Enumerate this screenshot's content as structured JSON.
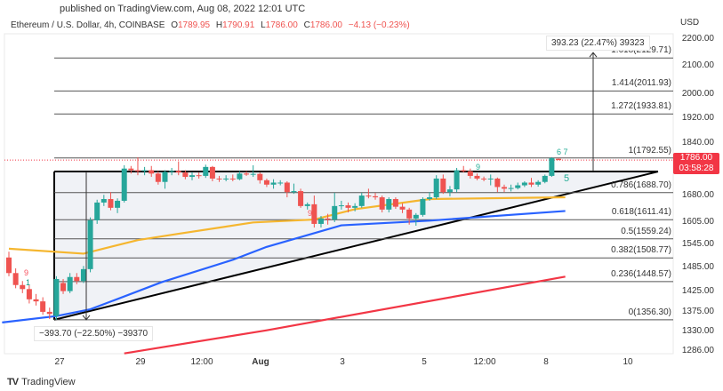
{
  "header": {
    "published": "published on TradingView.com, Aug 08, 2022 12:01 UTC",
    "symbol": "Ethereum / U.S. Dollar, 4h, COINBASE",
    "open_label": "O",
    "open": "1789.95",
    "high_label": "H",
    "high": "1790.91",
    "low_label": "L",
    "low": "1786.00",
    "close_label": "C",
    "close": "1786.00",
    "change": "−4.13 (−0.23%)"
  },
  "price_axis": {
    "currency": "USD",
    "ticks": [
      "2200.00",
      "2100.00",
      "2000.00",
      "1920.00",
      "1840.00",
      "1680.00",
      "1605.00",
      "1545.00",
      "1485.00",
      "1425.00",
      "1375.00",
      "1330.00",
      "1286.00"
    ],
    "current_price": "1786.00",
    "countdown": "03:58:28"
  },
  "time_axis": {
    "ticks": [
      {
        "label": "27",
        "bold": false
      },
      {
        "label": "29",
        "bold": false
      },
      {
        "label": "12:00",
        "bold": false
      },
      {
        "label": "Aug",
        "bold": true
      },
      {
        "label": "3",
        "bold": false
      },
      {
        "label": "5",
        "bold": false
      },
      {
        "label": "12:00",
        "bold": false
      },
      {
        "label": "8",
        "bold": false
      },
      {
        "label": "10",
        "bold": false
      }
    ]
  },
  "fib_levels": [
    {
      "label": "1.618(2129.71)",
      "price": 2129.71
    },
    {
      "label": "1.414(2011.93)",
      "price": 2011.93
    },
    {
      "label": "1.272(1933.81)",
      "price": 1933.81
    },
    {
      "label": "1(1792.55)",
      "price": 1792.55
    },
    {
      "label": "0.786(1688.70)",
      "price": 1688.7
    },
    {
      "label": "0.618(1611.41)",
      "price": 1611.41
    },
    {
      "label": "0.5(1559.24)",
      "price": 1559.24
    },
    {
      "label": "0.382(1508.77)",
      "price": 1508.77
    },
    {
      "label": "0.236(1448.57)",
      "price": 1448.57
    },
    {
      "label": "0(1356.30)",
      "price": 1356.3
    }
  ],
  "measurements": {
    "down": "−393.70 (−22.50%) −39370",
    "up": "393.23 (22.47%) 39323"
  },
  "td_labels": [
    {
      "text": "9",
      "color": "#f7525f"
    },
    {
      "text": "1",
      "color": "#089981"
    },
    {
      "text": "9",
      "color": "#f7525f"
    },
    {
      "text": "9",
      "color": "#22ab94"
    },
    {
      "text": "6 7",
      "color": "#22ab94"
    },
    {
      "text": "5",
      "color": "#22ab94"
    }
  ],
  "footer": {
    "brand": "TradingView"
  },
  "colors": {
    "up": "#26a69a",
    "down": "#ef5350",
    "ma_fast": "#f5b62f",
    "ma_mid": "#2962ff",
    "ma_slow": "#f23645",
    "pattern": "#000000",
    "price_line": "#f23645"
  },
  "chart_data": {
    "type": "candlestick",
    "interval": "4h",
    "y_scale": "log",
    "ylim": [
      1286,
      2200
    ],
    "candles": [
      [
        1510,
        1525,
        1462,
        1470
      ],
      [
        1470,
        1482,
        1432,
        1440
      ],
      [
        1440,
        1450,
        1420,
        1430
      ],
      [
        1430,
        1440,
        1395,
        1405
      ],
      [
        1405,
        1418,
        1390,
        1400
      ],
      [
        1400,
        1410,
        1368,
        1375
      ],
      [
        1375,
        1385,
        1358,
        1370
      ],
      [
        1365,
        1462,
        1356,
        1455
      ],
      [
        1445,
        1455,
        1418,
        1425
      ],
      [
        1425,
        1470,
        1420,
        1460
      ],
      [
        1460,
        1470,
        1442,
        1450
      ],
      [
        1450,
        1488,
        1445,
        1480
      ],
      [
        1480,
        1618,
        1472,
        1610
      ],
      [
        1610,
        1668,
        1600,
        1660
      ],
      [
        1660,
        1682,
        1650,
        1670
      ],
      [
        1670,
        1690,
        1638,
        1645
      ],
      [
        1645,
        1672,
        1630,
        1665
      ],
      [
        1665,
        1770,
        1660,
        1760
      ],
      [
        1760,
        1768,
        1745,
        1755
      ],
      [
        1755,
        1795,
        1740,
        1752
      ],
      [
        1752,
        1765,
        1740,
        1755
      ],
      [
        1755,
        1768,
        1735,
        1745
      ],
      [
        1745,
        1752,
        1712,
        1720
      ],
      [
        1720,
        1755,
        1700,
        1750
      ],
      [
        1750,
        1762,
        1740,
        1753
      ],
      [
        1753,
        1782,
        1740,
        1748
      ],
      [
        1748,
        1755,
        1728,
        1735
      ],
      [
        1735,
        1750,
        1725,
        1740
      ],
      [
        1740,
        1748,
        1730,
        1738
      ],
      [
        1738,
        1772,
        1732,
        1765
      ],
      [
        1765,
        1768,
        1722,
        1730
      ],
      [
        1730,
        1738,
        1720,
        1728
      ],
      [
        1728,
        1740,
        1722,
        1730
      ],
      [
        1730,
        1742,
        1722,
        1728
      ],
      [
        1728,
        1752,
        1725,
        1745
      ],
      [
        1745,
        1752,
        1738,
        1742
      ],
      [
        1742,
        1770,
        1735,
        1744
      ],
      [
        1744,
        1748,
        1715,
        1725
      ],
      [
        1725,
        1730,
        1705,
        1712
      ],
      [
        1712,
        1728,
        1700,
        1718
      ],
      [
        1718,
        1725,
        1710,
        1718
      ],
      [
        1718,
        1722,
        1675,
        1690
      ],
      [
        1690,
        1715,
        1685,
        1693
      ],
      [
        1693,
        1700,
        1645,
        1650
      ],
      [
        1650,
        1660,
        1640,
        1655
      ],
      [
        1655,
        1680,
        1590,
        1600
      ],
      [
        1600,
        1622,
        1590,
        1615
      ],
      [
        1615,
        1628,
        1598,
        1612
      ],
      [
        1612,
        1688,
        1605,
        1650
      ],
      [
        1650,
        1665,
        1640,
        1652
      ],
      [
        1652,
        1660,
        1632,
        1645
      ],
      [
        1645,
        1658,
        1635,
        1650
      ],
      [
        1650,
        1688,
        1645,
        1680
      ],
      [
        1680,
        1700,
        1672,
        1678
      ],
      [
        1678,
        1688,
        1668,
        1675
      ],
      [
        1675,
        1680,
        1632,
        1640
      ],
      [
        1640,
        1675,
        1632,
        1670
      ],
      [
        1670,
        1675,
        1642,
        1648
      ],
      [
        1648,
        1658,
        1630,
        1640
      ],
      [
        1640,
        1645,
        1598,
        1615
      ],
      [
        1615,
        1630,
        1595,
        1625
      ],
      [
        1625,
        1675,
        1620,
        1670
      ],
      [
        1670,
        1690,
        1665,
        1675
      ],
      [
        1675,
        1740,
        1670,
        1730
      ],
      [
        1730,
        1742,
        1685,
        1690
      ],
      [
        1690,
        1708,
        1678,
        1698
      ],
      [
        1698,
        1762,
        1690,
        1755
      ],
      [
        1755,
        1768,
        1748,
        1752
      ],
      [
        1752,
        1760,
        1730,
        1738
      ],
      [
        1738,
        1745,
        1725,
        1730
      ],
      [
        1730,
        1736,
        1722,
        1728
      ],
      [
        1728,
        1742,
        1710,
        1730
      ],
      [
        1730,
        1733,
        1690,
        1705
      ],
      [
        1705,
        1712,
        1690,
        1700
      ],
      [
        1700,
        1712,
        1692,
        1702
      ],
      [
        1702,
        1718,
        1698,
        1710
      ],
      [
        1710,
        1722,
        1705,
        1718
      ],
      [
        1718,
        1732,
        1705,
        1712
      ],
      [
        1712,
        1725,
        1706,
        1720
      ],
      [
        1720,
        1742,
        1716,
        1738
      ],
      [
        1738,
        1795,
        1735,
        1792
      ],
      [
        1789.95,
        1790.91,
        1786,
        1786
      ]
    ],
    "moving_averages": [
      {
        "color": "#f5b62f",
        "points": [
          [
            0,
            1533
          ],
          [
            11,
            1520
          ],
          [
            19,
            1556
          ],
          [
            25,
            1573
          ],
          [
            36,
            1604
          ],
          [
            45,
            1612
          ],
          [
            51,
            1641
          ],
          [
            62,
            1670
          ],
          [
            82,
            1675
          ]
        ]
      },
      {
        "color": "#2962ff",
        "points": [
          [
            -1,
            1350
          ],
          [
            7,
            1365
          ],
          [
            12,
            1381
          ],
          [
            22.5,
            1447
          ],
          [
            33,
            1504
          ],
          [
            38,
            1538
          ],
          [
            49,
            1596
          ],
          [
            62,
            1609
          ],
          [
            82,
            1636
          ]
        ]
      },
      {
        "color": "#f23645",
        "points": [
          [
            17,
            1280
          ],
          [
            38,
            1332
          ],
          [
            82,
            1461
          ]
        ]
      }
    ]
  }
}
